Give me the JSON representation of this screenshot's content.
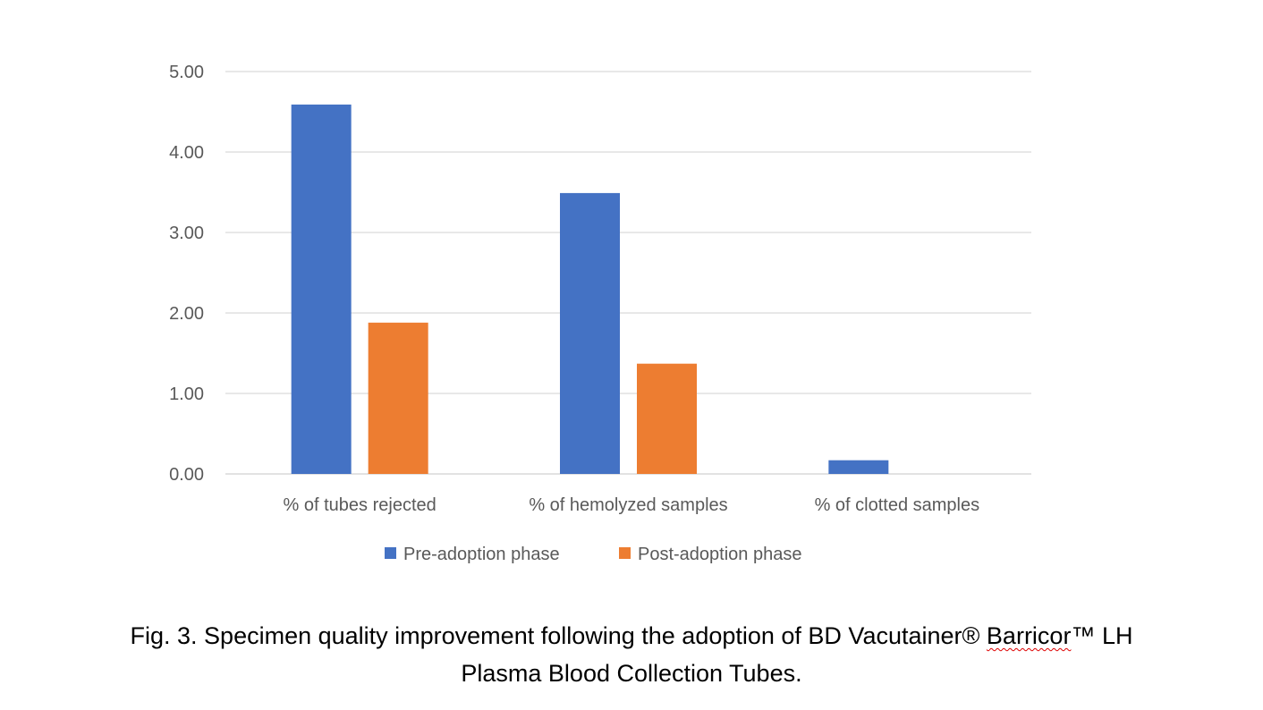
{
  "chart_data": {
    "type": "bar",
    "categories": [
      "% of tubes rejected",
      "% of hemolyzed samples",
      "% of clotted samples"
    ],
    "series": [
      {
        "name": "Pre-adoption phase",
        "values": [
          4.59,
          3.49,
          0.17
        ],
        "color": "#4472C4"
      },
      {
        "name": "Post-adoption phase",
        "values": [
          1.88,
          1.37,
          0.0
        ],
        "color": "#ED7D31"
      }
    ],
    "yticks": [
      "0.00",
      "1.00",
      "2.00",
      "3.00",
      "4.00",
      "5.00"
    ],
    "ylim": [
      0,
      5
    ],
    "grid": true,
    "legend": "bottom"
  },
  "caption": {
    "line1_pre": "Fig. 3. Specimen quality improvement following the adoption of BD Vacutainer® ",
    "line1_misspelled": "Barricor",
    "line1_post": "™ LH",
    "line2": "Plasma Blood Collection Tubes."
  }
}
